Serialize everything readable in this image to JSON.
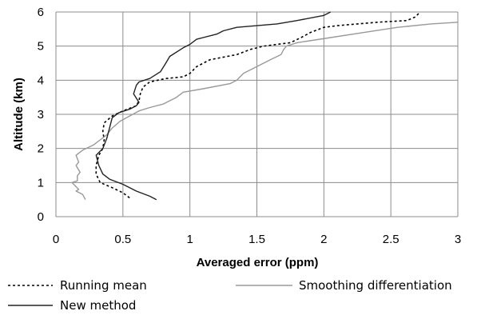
{
  "chart_data": {
    "type": "line",
    "title": "",
    "xlabel": "Averaged error (ppm)",
    "ylabel": "Altitude (km)",
    "xlim": [
      0,
      3
    ],
    "ylim": [
      0,
      6
    ],
    "x_ticks": [
      "0",
      "0.5",
      "1",
      "1.5",
      "2",
      "2.5",
      "3"
    ],
    "y_ticks": [
      "0",
      "1",
      "2",
      "3",
      "4",
      "5",
      "6"
    ],
    "grid": true,
    "legend_position": "bottom",
    "series": [
      {
        "name": "Running mean",
        "color": "#000000",
        "style": "dotted",
        "points": [
          [
            0.55,
            0.55
          ],
          [
            0.5,
            0.7
          ],
          [
            0.42,
            0.85
          ],
          [
            0.33,
            1.0
          ],
          [
            0.3,
            1.25
          ],
          [
            0.3,
            1.5
          ],
          [
            0.32,
            1.8
          ],
          [
            0.35,
            2.0
          ],
          [
            0.36,
            2.25
          ],
          [
            0.35,
            2.5
          ],
          [
            0.36,
            2.75
          ],
          [
            0.42,
            2.95
          ],
          [
            0.5,
            3.1
          ],
          [
            0.6,
            3.25
          ],
          [
            0.62,
            3.4
          ],
          [
            0.63,
            3.6
          ],
          [
            0.65,
            3.8
          ],
          [
            0.7,
            3.95
          ],
          [
            0.82,
            4.05
          ],
          [
            0.95,
            4.1
          ],
          [
            1.0,
            4.2
          ],
          [
            1.05,
            4.4
          ],
          [
            1.15,
            4.6
          ],
          [
            1.35,
            4.75
          ],
          [
            1.45,
            4.9
          ],
          [
            1.55,
            5.0
          ],
          [
            1.75,
            5.1
          ],
          [
            1.83,
            5.25
          ],
          [
            1.9,
            5.4
          ],
          [
            2.0,
            5.55
          ],
          [
            2.1,
            5.6
          ],
          [
            2.4,
            5.7
          ],
          [
            2.62,
            5.75
          ],
          [
            2.68,
            5.85
          ],
          [
            2.72,
            6.0
          ]
        ]
      },
      {
        "name": "Smoothing differentiation",
        "color": "#999999",
        "style": "solid",
        "points": [
          [
            0.22,
            0.5
          ],
          [
            0.2,
            0.65
          ],
          [
            0.15,
            0.75
          ],
          [
            0.17,
            0.8
          ],
          [
            0.12,
            1.0
          ],
          [
            0.16,
            1.05
          ],
          [
            0.16,
            1.2
          ],
          [
            0.18,
            1.3
          ],
          [
            0.15,
            1.5
          ],
          [
            0.17,
            1.6
          ],
          [
            0.15,
            1.8
          ],
          [
            0.2,
            1.95
          ],
          [
            0.28,
            2.1
          ],
          [
            0.33,
            2.25
          ],
          [
            0.38,
            2.4
          ],
          [
            0.42,
            2.6
          ],
          [
            0.48,
            2.8
          ],
          [
            0.55,
            2.95
          ],
          [
            0.62,
            3.1
          ],
          [
            0.7,
            3.2
          ],
          [
            0.8,
            3.3
          ],
          [
            0.9,
            3.5
          ],
          [
            0.95,
            3.65
          ],
          [
            1.1,
            3.75
          ],
          [
            1.3,
            3.9
          ],
          [
            1.35,
            4.0
          ],
          [
            1.4,
            4.2
          ],
          [
            1.5,
            4.4
          ],
          [
            1.6,
            4.6
          ],
          [
            1.68,
            4.75
          ],
          [
            1.7,
            4.9
          ],
          [
            1.72,
            5.0
          ],
          [
            1.8,
            5.1
          ],
          [
            2.05,
            5.25
          ],
          [
            2.3,
            5.4
          ],
          [
            2.55,
            5.55
          ],
          [
            2.8,
            5.65
          ],
          [
            3.0,
            5.7
          ]
        ]
      },
      {
        "name": "New method",
        "color": "#222222",
        "style": "solid",
        "points": [
          [
            0.75,
            0.5
          ],
          [
            0.7,
            0.6
          ],
          [
            0.6,
            0.75
          ],
          [
            0.5,
            0.95
          ],
          [
            0.4,
            1.1
          ],
          [
            0.35,
            1.25
          ],
          [
            0.32,
            1.5
          ],
          [
            0.3,
            1.8
          ],
          [
            0.35,
            2.0
          ],
          [
            0.38,
            2.3
          ],
          [
            0.4,
            2.6
          ],
          [
            0.42,
            2.9
          ],
          [
            0.47,
            3.05
          ],
          [
            0.55,
            3.15
          ],
          [
            0.6,
            3.25
          ],
          [
            0.62,
            3.35
          ],
          [
            0.58,
            3.6
          ],
          [
            0.6,
            3.85
          ],
          [
            0.62,
            3.95
          ],
          [
            0.7,
            4.05
          ],
          [
            0.78,
            4.25
          ],
          [
            0.82,
            4.5
          ],
          [
            0.85,
            4.7
          ],
          [
            0.95,
            4.95
          ],
          [
            1.0,
            5.05
          ],
          [
            1.05,
            5.2
          ],
          [
            1.2,
            5.35
          ],
          [
            1.25,
            5.45
          ],
          [
            1.35,
            5.55
          ],
          [
            1.5,
            5.6
          ],
          [
            1.65,
            5.65
          ],
          [
            1.8,
            5.75
          ],
          [
            2.0,
            5.9
          ],
          [
            2.05,
            6.0
          ]
        ]
      }
    ]
  }
}
